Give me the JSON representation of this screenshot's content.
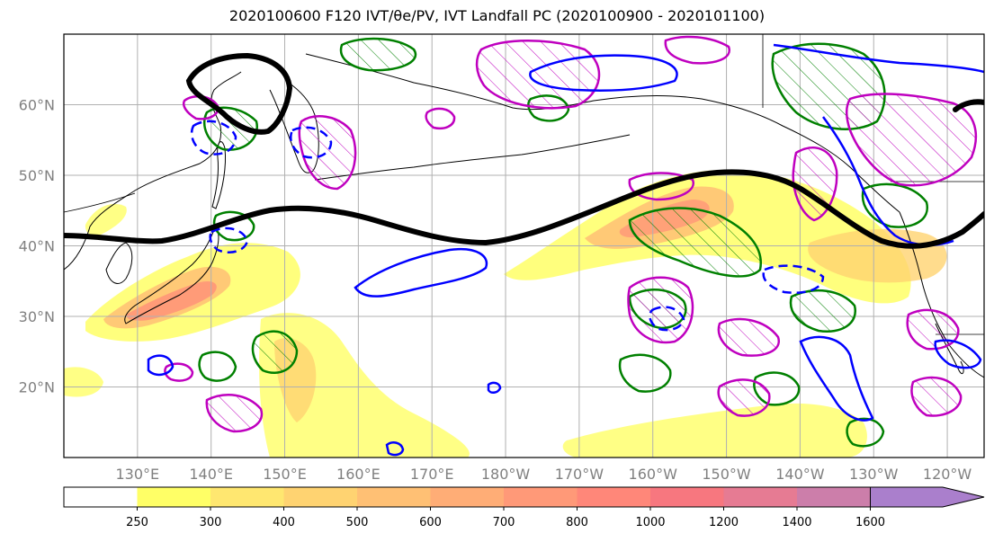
{
  "title": "2020100600 F120 IVT/θe/PV, IVT Landfall PC (2020100900 - 2020101100)",
  "map": {
    "extent": {
      "lon_min": 120,
      "lon_max": 245,
      "lat_min": 10,
      "lat_max": 70
    },
    "gridlines": true,
    "lon_ticks": [
      {
        "lon": 130,
        "label": "130°E"
      },
      {
        "lon": 140,
        "label": "140°E"
      },
      {
        "lon": 150,
        "label": "150°E"
      },
      {
        "lon": 160,
        "label": "160°E"
      },
      {
        "lon": 170,
        "label": "170°E"
      },
      {
        "lon": 180,
        "label": "180°W"
      },
      {
        "lon": 190,
        "label": "170°W"
      },
      {
        "lon": 200,
        "label": "160°W"
      },
      {
        "lon": 210,
        "label": "150°W"
      },
      {
        "lon": 220,
        "label": "140°W"
      },
      {
        "lon": 230,
        "label": "130°W"
      },
      {
        "lon": 240,
        "label": "120°W"
      }
    ],
    "lat_ticks": [
      {
        "lat": 60,
        "label": "60°N"
      },
      {
        "lat": 50,
        "label": "50°N"
      },
      {
        "lat": 40,
        "label": "40°N"
      },
      {
        "lat": 30,
        "label": "30°N"
      },
      {
        "lat": 20,
        "label": "20°N"
      }
    ],
    "colors": {
      "green_contour": "#008000",
      "magenta_contour": "#bf00bf",
      "blue_contour": "#0000ff",
      "black_line": "#000000",
      "tick_text": "#808080"
    }
  },
  "colorbar": {
    "labels": [
      "250",
      "300",
      "400",
      "500",
      "600",
      "700",
      "800",
      "1000",
      "1200",
      "1400",
      "1600"
    ],
    "colors": [
      "#ffff66",
      "#ffe770",
      "#ffd371",
      "#ffc074",
      "#ffad76",
      "#ff9978",
      "#ff8779",
      "#f7777f",
      "#e67b93",
      "#cc7eaa",
      "#aa7fcc"
    ]
  }
}
